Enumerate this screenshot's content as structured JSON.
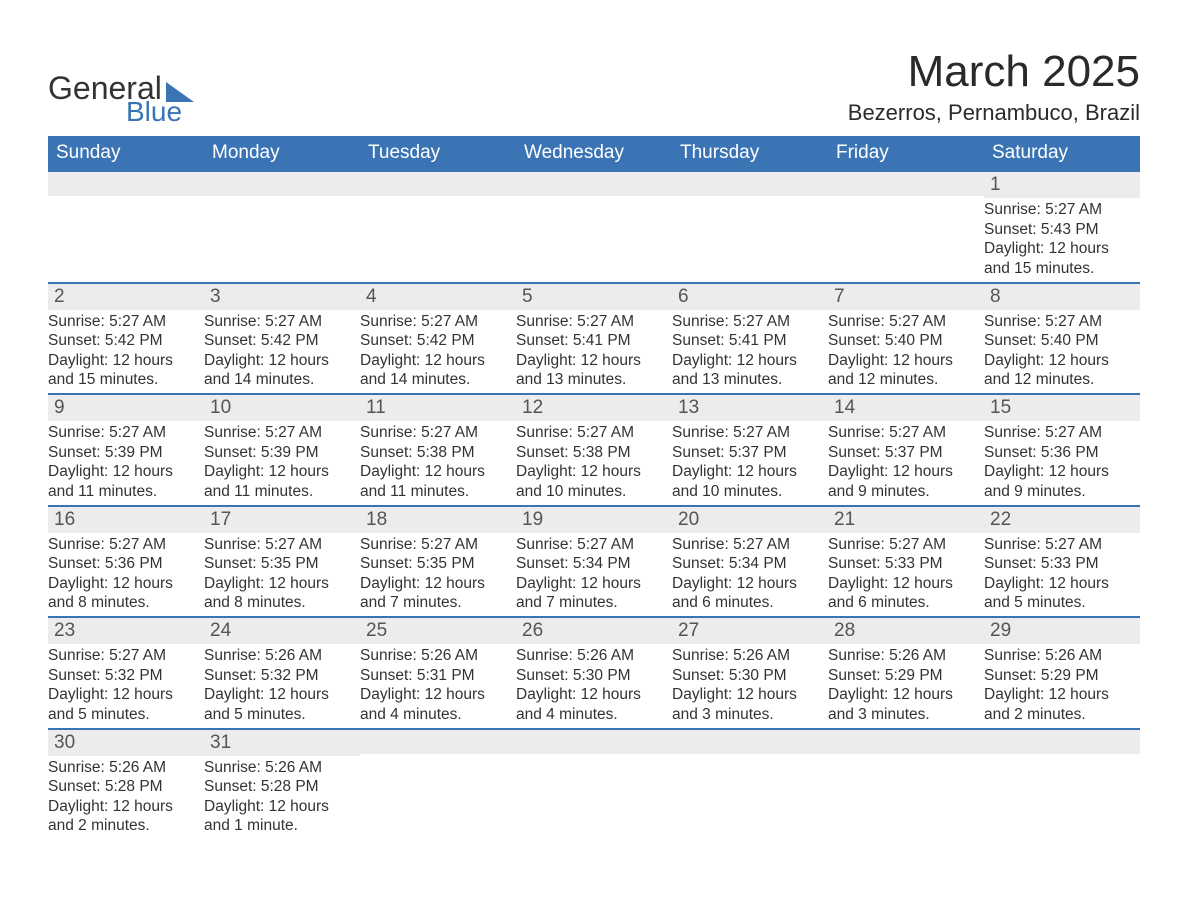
{
  "logo": {
    "line1": "General",
    "line2": "Blue"
  },
  "title": "March 2025",
  "location": "Bezerros, Pernambuco, Brazil",
  "colors": {
    "header_bg": "#3b74b5",
    "header_text": "#ffffff",
    "daynum_bg": "#ececec",
    "border": "#3b74b5",
    "text": "#333333",
    "logo_accent": "#3b74b5"
  },
  "typography": {
    "title_fontsize": 44,
    "location_fontsize": 22,
    "dayheader_fontsize": 19,
    "daynum_fontsize": 19,
    "details_fontsize": 15.5
  },
  "day_headers": [
    "Sunday",
    "Monday",
    "Tuesday",
    "Wednesday",
    "Thursday",
    "Friday",
    "Saturday"
  ],
  "weeks": [
    [
      null,
      null,
      null,
      null,
      null,
      null,
      {
        "n": "1",
        "sunrise": "Sunrise: 5:27 AM",
        "sunset": "Sunset: 5:43 PM",
        "day1": "Daylight: 12 hours",
        "day2": "and 15 minutes."
      }
    ],
    [
      {
        "n": "2",
        "sunrise": "Sunrise: 5:27 AM",
        "sunset": "Sunset: 5:42 PM",
        "day1": "Daylight: 12 hours",
        "day2": "and 15 minutes."
      },
      {
        "n": "3",
        "sunrise": "Sunrise: 5:27 AM",
        "sunset": "Sunset: 5:42 PM",
        "day1": "Daylight: 12 hours",
        "day2": "and 14 minutes."
      },
      {
        "n": "4",
        "sunrise": "Sunrise: 5:27 AM",
        "sunset": "Sunset: 5:42 PM",
        "day1": "Daylight: 12 hours",
        "day2": "and 14 minutes."
      },
      {
        "n": "5",
        "sunrise": "Sunrise: 5:27 AM",
        "sunset": "Sunset: 5:41 PM",
        "day1": "Daylight: 12 hours",
        "day2": "and 13 minutes."
      },
      {
        "n": "6",
        "sunrise": "Sunrise: 5:27 AM",
        "sunset": "Sunset: 5:41 PM",
        "day1": "Daylight: 12 hours",
        "day2": "and 13 minutes."
      },
      {
        "n": "7",
        "sunrise": "Sunrise: 5:27 AM",
        "sunset": "Sunset: 5:40 PM",
        "day1": "Daylight: 12 hours",
        "day2": "and 12 minutes."
      },
      {
        "n": "8",
        "sunrise": "Sunrise: 5:27 AM",
        "sunset": "Sunset: 5:40 PM",
        "day1": "Daylight: 12 hours",
        "day2": "and 12 minutes."
      }
    ],
    [
      {
        "n": "9",
        "sunrise": "Sunrise: 5:27 AM",
        "sunset": "Sunset: 5:39 PM",
        "day1": "Daylight: 12 hours",
        "day2": "and 11 minutes."
      },
      {
        "n": "10",
        "sunrise": "Sunrise: 5:27 AM",
        "sunset": "Sunset: 5:39 PM",
        "day1": "Daylight: 12 hours",
        "day2": "and 11 minutes."
      },
      {
        "n": "11",
        "sunrise": "Sunrise: 5:27 AM",
        "sunset": "Sunset: 5:38 PM",
        "day1": "Daylight: 12 hours",
        "day2": "and 11 minutes."
      },
      {
        "n": "12",
        "sunrise": "Sunrise: 5:27 AM",
        "sunset": "Sunset: 5:38 PM",
        "day1": "Daylight: 12 hours",
        "day2": "and 10 minutes."
      },
      {
        "n": "13",
        "sunrise": "Sunrise: 5:27 AM",
        "sunset": "Sunset: 5:37 PM",
        "day1": "Daylight: 12 hours",
        "day2": "and 10 minutes."
      },
      {
        "n": "14",
        "sunrise": "Sunrise: 5:27 AM",
        "sunset": "Sunset: 5:37 PM",
        "day1": "Daylight: 12 hours",
        "day2": "and 9 minutes."
      },
      {
        "n": "15",
        "sunrise": "Sunrise: 5:27 AM",
        "sunset": "Sunset: 5:36 PM",
        "day1": "Daylight: 12 hours",
        "day2": "and 9 minutes."
      }
    ],
    [
      {
        "n": "16",
        "sunrise": "Sunrise: 5:27 AM",
        "sunset": "Sunset: 5:36 PM",
        "day1": "Daylight: 12 hours",
        "day2": "and 8 minutes."
      },
      {
        "n": "17",
        "sunrise": "Sunrise: 5:27 AM",
        "sunset": "Sunset: 5:35 PM",
        "day1": "Daylight: 12 hours",
        "day2": "and 8 minutes."
      },
      {
        "n": "18",
        "sunrise": "Sunrise: 5:27 AM",
        "sunset": "Sunset: 5:35 PM",
        "day1": "Daylight: 12 hours",
        "day2": "and 7 minutes."
      },
      {
        "n": "19",
        "sunrise": "Sunrise: 5:27 AM",
        "sunset": "Sunset: 5:34 PM",
        "day1": "Daylight: 12 hours",
        "day2": "and 7 minutes."
      },
      {
        "n": "20",
        "sunrise": "Sunrise: 5:27 AM",
        "sunset": "Sunset: 5:34 PM",
        "day1": "Daylight: 12 hours",
        "day2": "and 6 minutes."
      },
      {
        "n": "21",
        "sunrise": "Sunrise: 5:27 AM",
        "sunset": "Sunset: 5:33 PM",
        "day1": "Daylight: 12 hours",
        "day2": "and 6 minutes."
      },
      {
        "n": "22",
        "sunrise": "Sunrise: 5:27 AM",
        "sunset": "Sunset: 5:33 PM",
        "day1": "Daylight: 12 hours",
        "day2": "and 5 minutes."
      }
    ],
    [
      {
        "n": "23",
        "sunrise": "Sunrise: 5:27 AM",
        "sunset": "Sunset: 5:32 PM",
        "day1": "Daylight: 12 hours",
        "day2": "and 5 minutes."
      },
      {
        "n": "24",
        "sunrise": "Sunrise: 5:26 AM",
        "sunset": "Sunset: 5:32 PM",
        "day1": "Daylight: 12 hours",
        "day2": "and 5 minutes."
      },
      {
        "n": "25",
        "sunrise": "Sunrise: 5:26 AM",
        "sunset": "Sunset: 5:31 PM",
        "day1": "Daylight: 12 hours",
        "day2": "and 4 minutes."
      },
      {
        "n": "26",
        "sunrise": "Sunrise: 5:26 AM",
        "sunset": "Sunset: 5:30 PM",
        "day1": "Daylight: 12 hours",
        "day2": "and 4 minutes."
      },
      {
        "n": "27",
        "sunrise": "Sunrise: 5:26 AM",
        "sunset": "Sunset: 5:30 PM",
        "day1": "Daylight: 12 hours",
        "day2": "and 3 minutes."
      },
      {
        "n": "28",
        "sunrise": "Sunrise: 5:26 AM",
        "sunset": "Sunset: 5:29 PM",
        "day1": "Daylight: 12 hours",
        "day2": "and 3 minutes."
      },
      {
        "n": "29",
        "sunrise": "Sunrise: 5:26 AM",
        "sunset": "Sunset: 5:29 PM",
        "day1": "Daylight: 12 hours",
        "day2": "and 2 minutes."
      }
    ],
    [
      {
        "n": "30",
        "sunrise": "Sunrise: 5:26 AM",
        "sunset": "Sunset: 5:28 PM",
        "day1": "Daylight: 12 hours",
        "day2": "and 2 minutes."
      },
      {
        "n": "31",
        "sunrise": "Sunrise: 5:26 AM",
        "sunset": "Sunset: 5:28 PM",
        "day1": "Daylight: 12 hours",
        "day2": "and 1 minute."
      },
      null,
      null,
      null,
      null,
      null
    ]
  ]
}
